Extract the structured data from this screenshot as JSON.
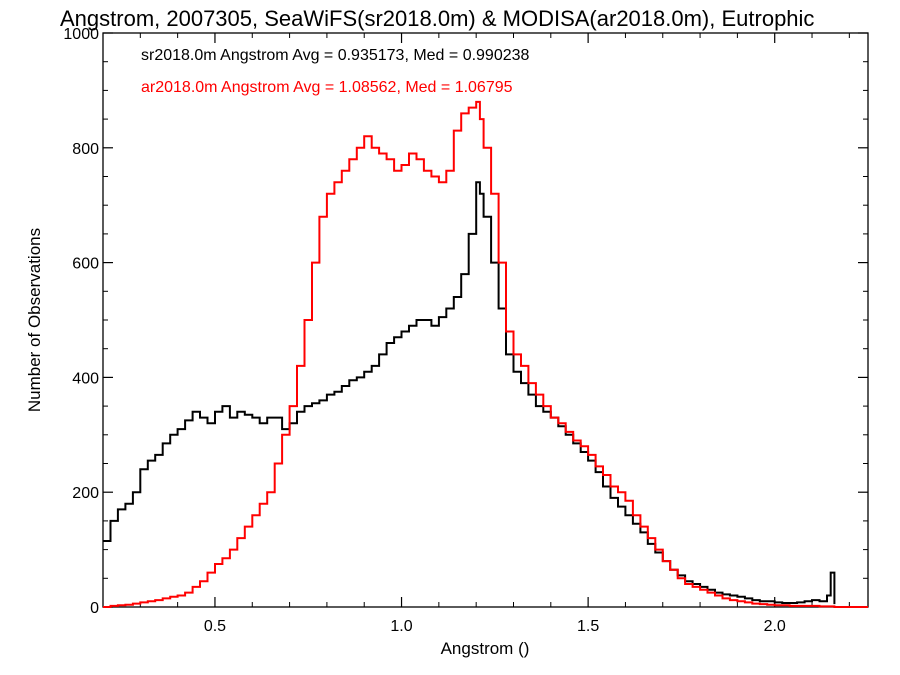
{
  "chart_data": {
    "type": "line",
    "title": "Angstrom, 2007305, SeaWiFS(sr2018.0m) & MODISA(ar2018.0m), Eutrophic",
    "xlabel": "Angstrom ()",
    "ylabel": "Number of Observations",
    "xlim": [
      0.2,
      2.25
    ],
    "ylim": [
      0,
      1000
    ],
    "xticks": [
      0.5,
      1.0,
      1.5,
      2.0
    ],
    "xtick_labels": [
      "0.5",
      "1.0",
      "1.5",
      "2.0"
    ],
    "yticks": [
      0,
      200,
      400,
      600,
      800,
      1000
    ],
    "ytick_labels": [
      "0",
      "200",
      "400",
      "600",
      "800",
      "1000"
    ],
    "grid": false,
    "legend_position": "top-left",
    "series": [
      {
        "name": "sr2018.0m Angstrom Avg = 0.935173, Med = 0.990238",
        "color": "#000000",
        "x": [
          0.2,
          0.22,
          0.24,
          0.26,
          0.28,
          0.3,
          0.32,
          0.34,
          0.36,
          0.38,
          0.4,
          0.42,
          0.44,
          0.46,
          0.48,
          0.5,
          0.52,
          0.54,
          0.56,
          0.58,
          0.6,
          0.62,
          0.64,
          0.66,
          0.68,
          0.7,
          0.72,
          0.74,
          0.76,
          0.78,
          0.8,
          0.82,
          0.84,
          0.86,
          0.88,
          0.9,
          0.92,
          0.94,
          0.96,
          0.98,
          1.0,
          1.02,
          1.04,
          1.06,
          1.08,
          1.1,
          1.12,
          1.14,
          1.16,
          1.18,
          1.2,
          1.21,
          1.22,
          1.24,
          1.26,
          1.28,
          1.3,
          1.32,
          1.34,
          1.36,
          1.38,
          1.4,
          1.42,
          1.44,
          1.46,
          1.48,
          1.5,
          1.52,
          1.54,
          1.56,
          1.58,
          1.6,
          1.62,
          1.64,
          1.66,
          1.68,
          1.7,
          1.72,
          1.74,
          1.76,
          1.78,
          1.8,
          1.82,
          1.84,
          1.86,
          1.88,
          1.9,
          1.92,
          1.94,
          1.96,
          1.98,
          2.0,
          2.02,
          2.04,
          2.06,
          2.08,
          2.1,
          2.12,
          2.14,
          2.15,
          2.16
        ],
        "y": [
          115,
          150,
          170,
          180,
          200,
          240,
          255,
          265,
          285,
          300,
          310,
          325,
          340,
          330,
          320,
          340,
          350,
          330,
          340,
          335,
          330,
          320,
          330,
          330,
          310,
          320,
          340,
          350,
          355,
          360,
          370,
          375,
          385,
          395,
          400,
          410,
          420,
          440,
          460,
          470,
          480,
          490,
          500,
          500,
          490,
          505,
          520,
          540,
          580,
          650,
          740,
          720,
          680,
          600,
          520,
          440,
          410,
          390,
          370,
          350,
          340,
          330,
          315,
          300,
          285,
          270,
          255,
          235,
          210,
          190,
          175,
          160,
          145,
          130,
          110,
          95,
          80,
          65,
          55,
          45,
          40,
          35,
          30,
          25,
          22,
          20,
          18,
          15,
          12,
          10,
          10,
          8,
          7,
          7,
          8,
          10,
          12,
          10,
          20,
          60,
          5
        ]
      },
      {
        "name": "ar2018.0m Angstrom Avg = 1.08562, Med = 1.06795",
        "color": "#ff0000",
        "x": [
          0.2,
          0.22,
          0.24,
          0.26,
          0.28,
          0.3,
          0.32,
          0.34,
          0.36,
          0.38,
          0.4,
          0.42,
          0.44,
          0.46,
          0.48,
          0.5,
          0.52,
          0.54,
          0.56,
          0.58,
          0.6,
          0.62,
          0.64,
          0.66,
          0.68,
          0.7,
          0.72,
          0.74,
          0.76,
          0.78,
          0.8,
          0.82,
          0.84,
          0.86,
          0.88,
          0.9,
          0.92,
          0.94,
          0.96,
          0.98,
          1.0,
          1.02,
          1.04,
          1.06,
          1.08,
          1.1,
          1.12,
          1.14,
          1.16,
          1.18,
          1.2,
          1.21,
          1.22,
          1.24,
          1.26,
          1.28,
          1.3,
          1.32,
          1.34,
          1.36,
          1.38,
          1.4,
          1.42,
          1.44,
          1.46,
          1.48,
          1.5,
          1.52,
          1.54,
          1.56,
          1.58,
          1.6,
          1.62,
          1.64,
          1.66,
          1.68,
          1.7,
          1.72,
          1.74,
          1.76,
          1.78,
          1.8,
          1.82,
          1.84,
          1.86,
          1.88,
          1.9,
          1.92,
          1.94,
          1.96,
          1.98,
          2.0,
          2.02,
          2.04,
          2.06,
          2.08,
          2.1,
          2.12,
          2.14,
          2.16,
          2.2,
          2.25
        ],
        "y": [
          0,
          2,
          3,
          4,
          6,
          8,
          10,
          12,
          15,
          18,
          20,
          25,
          35,
          45,
          60,
          75,
          85,
          100,
          120,
          140,
          160,
          180,
          200,
          250,
          300,
          350,
          420,
          500,
          600,
          680,
          720,
          740,
          760,
          780,
          800,
          820,
          800,
          790,
          780,
          760,
          770,
          790,
          780,
          760,
          750,
          740,
          760,
          830,
          860,
          870,
          880,
          850,
          800,
          720,
          600,
          480,
          440,
          420,
          390,
          370,
          350,
          330,
          320,
          305,
          290,
          280,
          265,
          245,
          230,
          210,
          200,
          185,
          160,
          140,
          120,
          100,
          80,
          65,
          50,
          40,
          35,
          30,
          25,
          20,
          15,
          12,
          10,
          8,
          6,
          5,
          4,
          3,
          3,
          2,
          2,
          2,
          2,
          1,
          1,
          0,
          0,
          0
        ]
      }
    ]
  }
}
